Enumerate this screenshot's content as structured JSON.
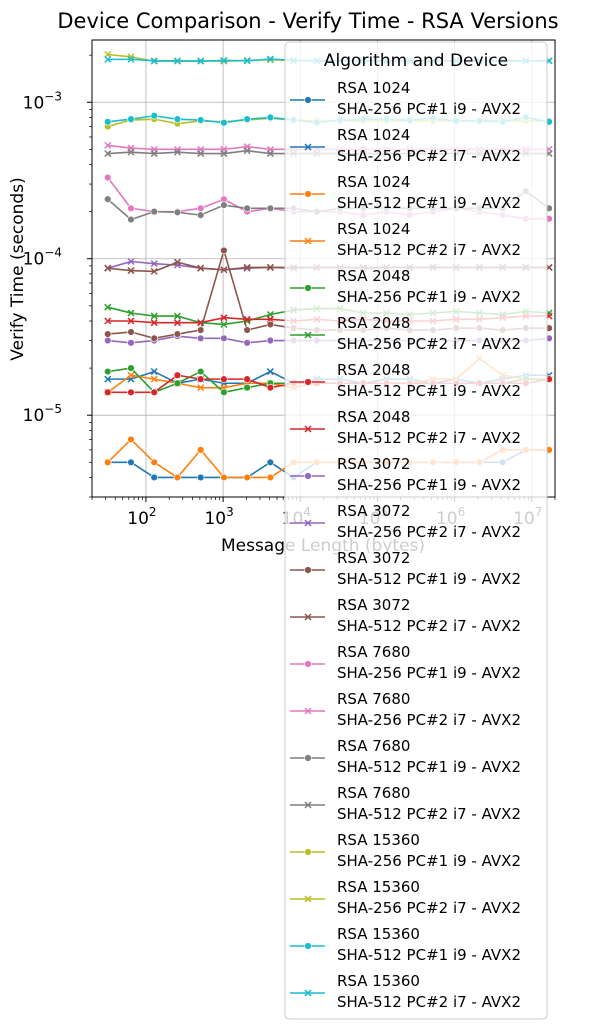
{
  "chart_data": {
    "type": "line",
    "title": "Device Comparison - Verify Time - RSA Versions",
    "xlabel": "Message Length (bytes)",
    "ylabel": "Verify Time (seconds)",
    "xscale": "log",
    "yscale": "log",
    "xlim": [
      20,
      20000000
    ],
    "ylim": [
      3e-06,
      0.0025
    ],
    "grid": true,
    "xticks": [
      {
        "value": 100,
        "base": "10",
        "exp": "2"
      },
      {
        "value": 1000,
        "base": "10",
        "exp": "3"
      },
      {
        "value": 10000,
        "base": "10",
        "exp": "4"
      },
      {
        "value": 100000,
        "base": "10",
        "exp": "5"
      },
      {
        "value": 1000000,
        "base": "10",
        "exp": "6"
      },
      {
        "value": 10000000,
        "base": "10",
        "exp": "7"
      }
    ],
    "yticks": [
      {
        "value": 1e-05,
        "base": "10",
        "exp": "−5"
      },
      {
        "value": 0.0001,
        "base": "10",
        "exp": "−4"
      },
      {
        "value": 0.001,
        "base": "10",
        "exp": "−3"
      }
    ],
    "legend": {
      "title": "Algorithm and Device",
      "placement": "upper right"
    },
    "x": [
      32,
      64,
      128,
      256,
      512,
      1024,
      2048,
      4096,
      8192,
      16384,
      32768,
      65536,
      131072,
      262144,
      524288,
      1048576,
      2097152,
      4194304,
      8388608,
      16777216
    ],
    "series": [
      {
        "name_line1": "RSA 1024",
        "name_line2": "SHA-256 PC#1 i9 - AVX2",
        "color": "#1f77b4",
        "marker": "circle",
        "values": [
          5e-06,
          5e-06,
          4e-06,
          4e-06,
          4e-06,
          4e-06,
          4e-06,
          5e-06,
          4e-06,
          5e-06,
          5e-06,
          5e-06,
          5e-06,
          5e-06,
          5e-06,
          5e-06,
          5e-06,
          5e-06,
          6e-06,
          6e-06
        ]
      },
      {
        "name_line1": "RSA 1024",
        "name_line2": "SHA-256 PC#2 i7 - AVX2",
        "color": "#1f77b4",
        "marker": "x",
        "values": [
          1.7e-05,
          1.7e-05,
          1.9e-05,
          1.6e-05,
          1.7e-05,
          1.6e-05,
          1.6e-05,
          1.9e-05,
          1.6e-05,
          1.7e-05,
          1.7e-05,
          1.6e-05,
          1.7e-05,
          1.7e-05,
          1.6e-05,
          1.7e-05,
          1.6e-05,
          1.7e-05,
          1.8e-05,
          1.8e-05
        ]
      },
      {
        "name_line1": "RSA 1024",
        "name_line2": "SHA-512 PC#1 i9 - AVX2",
        "color": "#ff7f0e",
        "marker": "circle",
        "values": [
          5e-06,
          7e-06,
          5e-06,
          4e-06,
          6e-06,
          4e-06,
          4e-06,
          4e-06,
          5e-06,
          5e-06,
          5e-06,
          5e-06,
          5e-06,
          5e-06,
          5e-06,
          5e-06,
          5e-06,
          6e-06,
          6e-06,
          6e-06
        ]
      },
      {
        "name_line1": "RSA 1024",
        "name_line2": "SHA-512 PC#2 i7 - AVX2",
        "color": "#ff7f0e",
        "marker": "x",
        "values": [
          1.4e-05,
          1.8e-05,
          1.7e-05,
          1.6e-05,
          1.5e-05,
          1.5e-05,
          1.6e-05,
          1.6e-05,
          1.5e-05,
          1.6e-05,
          1.6e-05,
          1.6e-05,
          1.6e-05,
          1.6e-05,
          1.7e-05,
          1.7e-05,
          2.3e-05,
          1.8e-05,
          1.7e-05,
          1.7e-05
        ]
      },
      {
        "name_line1": "RSA 2048",
        "name_line2": "SHA-256 PC#1 i9 - AVX2",
        "color": "#2ca02c",
        "marker": "circle",
        "values": [
          1.9e-05,
          2e-05,
          1.4e-05,
          1.6e-05,
          1.9e-05,
          1.4e-05,
          1.5e-05,
          1.6e-05,
          1.6e-05,
          1.6e-05,
          1.6e-05,
          1.6e-05,
          1.6e-05,
          1.6e-05,
          1.6e-05,
          1.6e-05,
          1.6e-05,
          1.6e-05,
          1.7e-05,
          1.7e-05
        ]
      },
      {
        "name_line1": "RSA 2048",
        "name_line2": "SHA-256 PC#2 i7 - AVX2",
        "color": "#2ca02c",
        "marker": "x",
        "values": [
          4.9e-05,
          4.5e-05,
          4.3e-05,
          4.3e-05,
          3.9e-05,
          3.8e-05,
          4e-05,
          4.4e-05,
          4.7e-05,
          4.8e-05,
          4.8e-05,
          4.5e-05,
          4.5e-05,
          4.4e-05,
          4.5e-05,
          4.6e-05,
          4.5e-05,
          4.4e-05,
          4.6e-05,
          4.5e-05
        ]
      },
      {
        "name_line1": "RSA 2048",
        "name_line2": "SHA-512 PC#1 i9 - AVX2",
        "color": "#d62728",
        "marker": "circle",
        "values": [
          1.4e-05,
          1.4e-05,
          1.4e-05,
          1.8e-05,
          1.7e-05,
          1.7e-05,
          1.7e-05,
          1.5e-05,
          1.6e-05,
          1.6e-05,
          1.6e-05,
          1.6e-05,
          1.6e-05,
          1.6e-05,
          1.6e-05,
          1.6e-05,
          1.6e-05,
          1.6e-05,
          1.6e-05,
          1.7e-05
        ]
      },
      {
        "name_line1": "RSA 2048",
        "name_line2": "SHA-512 PC#2 i7 - AVX2",
        "color": "#d62728",
        "marker": "x",
        "values": [
          4e-05,
          4e-05,
          3.9e-05,
          3.9e-05,
          3.9e-05,
          4.2e-05,
          4.1e-05,
          4.1e-05,
          4e-05,
          4.1e-05,
          4e-05,
          4.1e-05,
          4e-05,
          4e-05,
          4e-05,
          4.1e-05,
          4.1e-05,
          4.2e-05,
          4.3e-05,
          4.3e-05
        ]
      },
      {
        "name_line1": "RSA 3072",
        "name_line2": "SHA-256 PC#1 i9 - AVX2",
        "color": "#9467bd",
        "marker": "circle",
        "values": [
          3e-05,
          2.9e-05,
          3e-05,
          3.2e-05,
          3.1e-05,
          3.1e-05,
          2.9e-05,
          3e-05,
          3e-05,
          3e-05,
          3e-05,
          3e-05,
          3e-05,
          3e-05,
          3e-05,
          3e-05,
          3e-05,
          3e-05,
          3e-05,
          3.1e-05
        ]
      },
      {
        "name_line1": "RSA 3072",
        "name_line2": "SHA-256 PC#2 i7 - AVX2",
        "color": "#9467bd",
        "marker": "x",
        "values": [
          8.7e-05,
          9.6e-05,
          9.3e-05,
          9.1e-05,
          8.7e-05,
          8.5e-05,
          8.7e-05,
          8.8e-05,
          8.7e-05,
          8.8e-05,
          8.8e-05,
          8.8e-05,
          8.8e-05,
          8.8e-05,
          8.8e-05,
          8.8e-05,
          8.8e-05,
          8.8e-05,
          8.8e-05,
          8.8e-05
        ]
      },
      {
        "name_line1": "RSA 3072",
        "name_line2": "SHA-512 PC#1 i9 - AVX2",
        "color": "#8c564b",
        "marker": "circle",
        "values": [
          3.3e-05,
          3.4e-05,
          3.1e-05,
          3.3e-05,
          3.5e-05,
          0.000113,
          3.5e-05,
          3.8e-05,
          3.6e-05,
          3.5e-05,
          3.5e-05,
          3.5e-05,
          3.6e-05,
          3.5e-05,
          3.5e-05,
          3.6e-05,
          3.6e-05,
          3.5e-05,
          3.6e-05,
          3.6e-05
        ]
      },
      {
        "name_line1": "RSA 3072",
        "name_line2": "SHA-512 PC#2 i7 - AVX2",
        "color": "#8c564b",
        "marker": "x",
        "values": [
          8.7e-05,
          8.4e-05,
          8.3e-05,
          9.5e-05,
          8.7e-05,
          8.5e-05,
          8.8e-05,
          8.8e-05,
          8.8e-05,
          8.8e-05,
          8.8e-05,
          8.7e-05,
          8.8e-05,
          8.8e-05,
          8.8e-05,
          8.8e-05,
          8.8e-05,
          8.8e-05,
          8.8e-05,
          8.8e-05
        ]
      },
      {
        "name_line1": "RSA 7680",
        "name_line2": "SHA-256 PC#1 i9 - AVX2",
        "color": "#e377c2",
        "marker": "circle",
        "values": [
          0.00033,
          0.00021,
          0.0002,
          0.0002,
          0.00021,
          0.00024,
          0.0002,
          0.00021,
          0.0002,
          0.0002,
          0.0002,
          0.00019,
          0.0002,
          0.00019,
          0.0002,
          0.00021,
          0.0002,
          0.00019,
          0.00018,
          0.00018
        ]
      },
      {
        "name_line1": "RSA 7680",
        "name_line2": "SHA-256 PC#2 i7 - AVX2",
        "color": "#e377c2",
        "marker": "x",
        "values": [
          0.00053,
          0.00051,
          0.0005,
          0.0005,
          0.0005,
          0.0005,
          0.00052,
          0.0005,
          0.0005,
          0.0005,
          0.0005,
          0.0005,
          0.0005,
          0.0005,
          0.0005,
          0.0005,
          0.0005,
          0.0005,
          0.0005,
          0.0005
        ]
      },
      {
        "name_line1": "RSA 7680",
        "name_line2": "SHA-512 PC#1 i9 - AVX2",
        "color": "#7f7f7f",
        "marker": "circle",
        "values": [
          0.00024,
          0.000178,
          0.0002,
          0.000198,
          0.00019,
          0.00022,
          0.00021,
          0.00021,
          0.00021,
          0.0002,
          0.00021,
          0.00021,
          0.00021,
          0.00021,
          0.00021,
          0.00021,
          0.00021,
          0.00021,
          0.00027,
          0.00021
        ]
      },
      {
        "name_line1": "RSA 7680",
        "name_line2": "SHA-512 PC#2 i7 - AVX2",
        "color": "#7f7f7f",
        "marker": "x",
        "values": [
          0.00047,
          0.00048,
          0.00047,
          0.00048,
          0.00047,
          0.00047,
          0.00049,
          0.00047,
          0.00047,
          0.00047,
          0.00047,
          0.00047,
          0.00047,
          0.00047,
          0.00047,
          0.00047,
          0.00047,
          0.00047,
          0.00047,
          0.00047
        ]
      },
      {
        "name_line1": "RSA 15360",
        "name_line2": "SHA-256 PC#1 i9 - AVX2",
        "color": "#bcbd22",
        "marker": "circle",
        "values": [
          0.0007,
          0.00077,
          0.00078,
          0.00073,
          0.00076,
          0.00075,
          0.00077,
          0.00079,
          0.00077,
          0.00076,
          0.00076,
          0.00076,
          0.00076,
          0.00076,
          0.00076,
          0.00076,
          0.00076,
          0.00076,
          0.00076,
          0.00076
        ]
      },
      {
        "name_line1": "RSA 15360",
        "name_line2": "SHA-256 PC#2 i7 - AVX2",
        "color": "#bcbd22",
        "marker": "x",
        "values": [
          0.00202,
          0.00195,
          0.00183,
          0.00183,
          0.00184,
          0.00183,
          0.00185,
          0.00187,
          0.00185,
          0.00184,
          0.00184,
          0.00184,
          0.00184,
          0.00184,
          0.00184,
          0.00184,
          0.00184,
          0.00184,
          0.00184,
          0.00184
        ]
      },
      {
        "name_line1": "RSA 15360",
        "name_line2": "SHA-512 PC#1 i9 - AVX2",
        "color": "#17becf",
        "marker": "circle",
        "values": [
          0.00075,
          0.00078,
          0.00082,
          0.00078,
          0.00077,
          0.00074,
          0.00078,
          0.0008,
          0.00077,
          0.00074,
          0.00077,
          0.00078,
          0.00078,
          0.00077,
          0.00079,
          0.00076,
          0.00076,
          0.00075,
          0.0008,
          0.00075
        ]
      },
      {
        "name_line1": "RSA 15360",
        "name_line2": "SHA-512 PC#2 i7 - AVX2",
        "color": "#17becf",
        "marker": "x",
        "values": [
          0.00188,
          0.00188,
          0.00184,
          0.00184,
          0.00183,
          0.00185,
          0.00184,
          0.00189,
          0.00185,
          0.00184,
          0.00184,
          0.00184,
          0.00184,
          0.00184,
          0.00184,
          0.00184,
          0.00184,
          0.00184,
          0.00184,
          0.00184
        ]
      }
    ]
  }
}
